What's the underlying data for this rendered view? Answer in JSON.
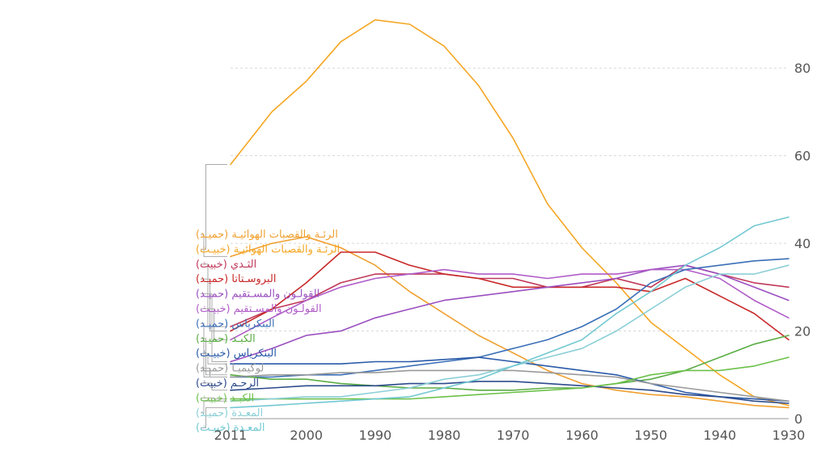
{
  "chart_data": {
    "type": "line",
    "title": "",
    "xlabel": "",
    "ylabel": "",
    "x_direction": "reversed",
    "xlim": [
      2011,
      1930
    ],
    "ylim": [
      0,
      90
    ],
    "grid": true,
    "legend_position": "left",
    "x_ticks": [
      2011,
      2000,
      1990,
      1980,
      1970,
      1960,
      1950,
      1940,
      1930
    ],
    "y_ticks": [
      0,
      20,
      40,
      60,
      80
    ],
    "x": [
      2011,
      2005,
      2000,
      1995,
      1990,
      1985,
      1980,
      1975,
      1970,
      1965,
      1960,
      1955,
      1950,
      1945,
      1940,
      1935,
      1930
    ],
    "series": [
      {
        "name": "الرئـة والقصبات الهوائيـة (حميـد)",
        "color": "#f0a030",
        "values": [
          37,
          40,
          41.5,
          39,
          35,
          29,
          24,
          19,
          15,
          11,
          8,
          6.5,
          5.5,
          5,
          4,
          3,
          2.5
        ]
      },
      {
        "name": "الرئـة والقصبات الهوائيـة (خبيـث)",
        "color": "#f5a623",
        "values": [
          58,
          70,
          77,
          86,
          91,
          90,
          85,
          76,
          64,
          49,
          39,
          31,
          22,
          16,
          10,
          5,
          3
        ]
      },
      {
        "name": "الثـدي (خبيث)",
        "color": "#c0395a",
        "values": [
          21,
          25,
          27,
          31,
          33,
          33,
          33,
          32,
          32,
          30,
          30,
          32,
          30,
          35,
          33,
          31,
          30
        ]
      },
      {
        "name": "البروسـتاتا (حميـد)",
        "color": "#c82828",
        "values": [
          20,
          25,
          31,
          38,
          38,
          35,
          33,
          32,
          30,
          30,
          30,
          30,
          29,
          32,
          28,
          24,
          18
        ]
      },
      {
        "name": "القولـون والمسـتقيم (حميـد)",
        "color": "#9b4fc0",
        "values": [
          13,
          16,
          19,
          20,
          23,
          25,
          27,
          28,
          29,
          30,
          31,
          32,
          34,
          35,
          33,
          30,
          27
        ]
      },
      {
        "name": "القولـون والمسـتقيم (خبيـث)",
        "color": "#b05cc8",
        "values": [
          18,
          23,
          27,
          30,
          32,
          33,
          34,
          33,
          33,
          32,
          33,
          33,
          34,
          34,
          32,
          27,
          23
        ]
      },
      {
        "name": "البنكرياس (حميـد)",
        "color": "#3b6fb8",
        "values": [
          9.5,
          9.5,
          10,
          10,
          11,
          12,
          13,
          14,
          16,
          18,
          21,
          25,
          31,
          34,
          35,
          36,
          36.5
        ]
      },
      {
        "name": "الكبـد (حميـد)",
        "color": "#5aac44",
        "values": [
          10,
          9,
          9,
          8,
          7.5,
          7,
          7,
          6.5,
          6.5,
          7,
          7,
          8,
          9,
          11,
          14,
          17,
          19
        ]
      },
      {
        "name": "البنكرياس (خبيـث)",
        "color": "#2a5aa8",
        "values": [
          12.5,
          12.5,
          12.5,
          12.5,
          13,
          13,
          13.5,
          14,
          13,
          12,
          11,
          10,
          8,
          6,
          5,
          4.5,
          4
        ]
      },
      {
        "name": "لوكيميـا (حميـد)",
        "color": "#999999",
        "values": [
          9.5,
          10,
          10,
          10.5,
          10.5,
          11,
          11,
          11,
          11,
          10.5,
          10,
          9.5,
          8,
          7,
          6,
          5,
          4
        ]
      },
      {
        "name": "الرحـم (خبيث)",
        "color": "#2c4a8c",
        "values": [
          6.5,
          7,
          7.5,
          7.5,
          7.5,
          8,
          8,
          8.5,
          8.5,
          8,
          7.5,
          7,
          6.5,
          5.5,
          5,
          4,
          3.5
        ]
      },
      {
        "name": "الكبـد (خبيث)",
        "color": "#6cc04a",
        "values": [
          4.5,
          4.5,
          4.5,
          4.5,
          4.5,
          4.5,
          5,
          5.5,
          6,
          6.5,
          7,
          8,
          10,
          11,
          11,
          12,
          14
        ]
      },
      {
        "name": "المعـدة (حميـد)",
        "color": "#8ccfd6",
        "values": [
          4,
          4.5,
          5,
          5,
          6,
          7,
          9,
          10,
          12,
          14,
          16,
          20,
          25,
          30,
          33,
          33,
          35
        ]
      },
      {
        "name": "المعـدة (خبيـث)",
        "color": "#72c8d2",
        "values": [
          2.5,
          3,
          3.5,
          4,
          4.5,
          5,
          7,
          9,
          12,
          15,
          18,
          24,
          29,
          35,
          39,
          44,
          46
        ]
      }
    ]
  }
}
